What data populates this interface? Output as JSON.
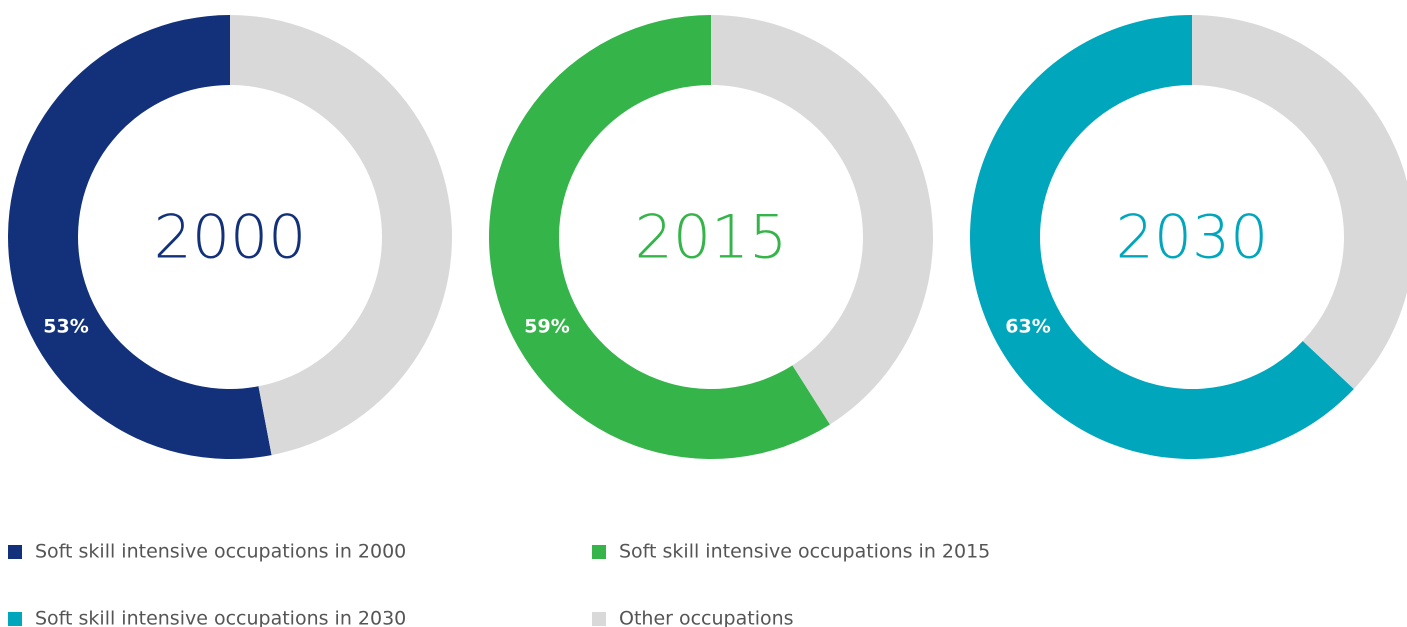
{
  "chart_data": [
    {
      "type": "donut",
      "center_label": "2000",
      "categories": [
        "Soft skill intensive occupations in 2000",
        "Other occupations"
      ],
      "values": [
        53,
        47
      ],
      "value_labels": [
        "53%",
        null
      ],
      "colors": [
        "#12317a",
        "#d9d9d9"
      ]
    },
    {
      "type": "donut",
      "center_label": "2015",
      "categories": [
        "Soft skill intensive occupations in 2015",
        "Other occupations"
      ],
      "values": [
        59,
        41
      ],
      "value_labels": [
        "59%",
        null
      ],
      "colors": [
        "#35b44a",
        "#d9d9d9"
      ]
    },
    {
      "type": "donut",
      "center_label": "2030",
      "categories": [
        "Soft skill intensive occupations in 2030",
        "Other occupations"
      ],
      "values": [
        63,
        37
      ],
      "value_labels": [
        "63%",
        null
      ],
      "colors": [
        "#00a6bc",
        "#d9d9d9"
      ]
    }
  ]
}
